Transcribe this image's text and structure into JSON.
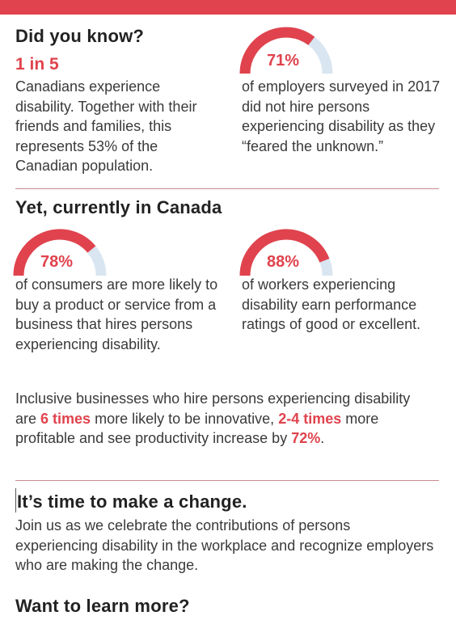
{
  "intro": {
    "title": "Did you know?",
    "stat": "1 in 5",
    "text": "Canadians experience disability. Together with their friends and families, this represents 53% of the Canadian population."
  },
  "gauges": [
    {
      "value": "71%",
      "fraction": 0.71,
      "text": "of employers surveyed in 2017 did not hire persons experiencing disability as they “feared the unknown.”"
    },
    {
      "value": "78%",
      "fraction": 0.78,
      "text": "of consumers are more likely to buy a product or service from a business that hires persons experiencing disability."
    },
    {
      "value": "88%",
      "fraction": 0.88,
      "text": "of workers experiencing disability earn performance ratings of good or excellent."
    }
  ],
  "section2": {
    "title": "Yet, currently in Canada"
  },
  "summary": {
    "part1": "Inclusive businesses who hire persons experiencing disability are ",
    "hl1": "6 times",
    "part2": " more likely to be innovative, ",
    "hl2": "2-4 times",
    "part3": " more profitable and see productivity increase by ",
    "hl3": "72%",
    "part4": "."
  },
  "change": {
    "title": "It’s time to make a change.",
    "text": "Join us as we celebrate the contributions of persons experiencing disability in the workplace and recognize employers who are making the change."
  },
  "learn": {
    "title": "Want to learn more?"
  },
  "colors": {
    "accent": "#e0434d",
    "track": "#d9e6f2",
    "text": "#3a3a3a"
  }
}
